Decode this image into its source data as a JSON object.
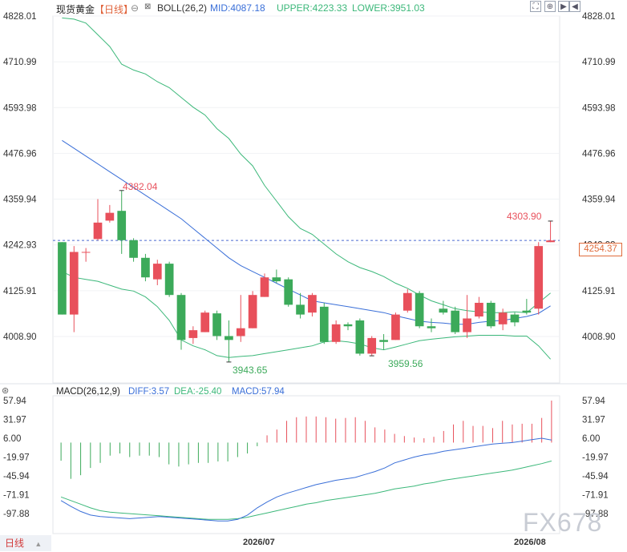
{
  "header": {
    "symbol": "现货黄金",
    "period": "【日线】",
    "indicator": "BOLL(26,2)",
    "mid": "MID:4087.18",
    "upper": "UPPER:4223.33",
    "lower": "LOWER:3951.03"
  },
  "macd_header": {
    "name": "MACD(26,12,9)",
    "diff": "DIFF:3.57",
    "dea": "DEA:-25.40",
    "macd": "MACD:57.94"
  },
  "bottom": {
    "period_button": "日线",
    "date_label_1": "2026/07",
    "date_label_2": "2026/08"
  },
  "current_price": "4254.37",
  "annotations": {
    "high1": "4382.04",
    "low1": "3943.65",
    "low2": "3959.56",
    "high2": "4303.90"
  },
  "watermark": "FX678",
  "colors": {
    "up": "#e8505b",
    "down": "#3caa5a",
    "mid": "#3a6fd8",
    "band": "#3cb87a",
    "price_line": "#4a6ad0",
    "dea": "#3cb87a",
    "diff": "#3a6fd8"
  },
  "chart_data": [
    {
      "type": "candlestick",
      "title": "现货黄金 日线 BOLL(26,2)",
      "y_ticks": [
        "4828.01",
        "4710.99",
        "4593.98",
        "4476.96",
        "4359.94",
        "4242.93",
        "4125.91",
        "4008.90"
      ],
      "ylim": [
        3945,
        4828.01
      ],
      "candles": [
        {
          "o": 4250,
          "h": 4250,
          "c": 4065,
          "l": 4065
        },
        {
          "o": 4065,
          "h": 4240,
          "c": 4225,
          "l": 4020
        },
        {
          "o": 4225,
          "h": 4235,
          "c": 4225,
          "l": 4200
        },
        {
          "o": 4258,
          "h": 4360,
          "c": 4300,
          "l": 4255
        },
        {
          "o": 4305,
          "h": 4345,
          "c": 4325,
          "l": 4300
        },
        {
          "o": 4330,
          "h": 4382.04,
          "c": 4255,
          "l": 4220
        },
        {
          "o": 4255,
          "h": 4260,
          "c": 4210,
          "l": 4200
        },
        {
          "o": 4210,
          "h": 4220,
          "c": 4160,
          "l": 4150
        },
        {
          "o": 4155,
          "h": 4205,
          "c": 4195,
          "l": 4140
        },
        {
          "o": 4195,
          "h": 4200,
          "c": 4115,
          "l": 4110
        },
        {
          "o": 4115,
          "h": 4120,
          "c": 4000,
          "l": 3975
        },
        {
          "o": 4005,
          "h": 4035,
          "c": 4025,
          "l": 3990
        },
        {
          "o": 4020,
          "h": 4075,
          "c": 4070,
          "l": 4020
        },
        {
          "o": 4068,
          "h": 4075,
          "c": 4010,
          "l": 4000
        },
        {
          "o": 4010,
          "h": 4050,
          "c": 4000,
          "l": 3943.65
        },
        {
          "o": 4010,
          "h": 4115,
          "c": 4030,
          "l": 3995
        },
        {
          "o": 4030,
          "h": 4125,
          "c": 4115,
          "l": 4030
        },
        {
          "o": 4110,
          "h": 4170,
          "c": 4160,
          "l": 4110
        },
        {
          "o": 4160,
          "h": 4180,
          "c": 4150,
          "l": 4145
        },
        {
          "o": 4155,
          "h": 4160,
          "c": 4090,
          "l": 4085
        },
        {
          "o": 4090,
          "h": 4120,
          "c": 4065,
          "l": 4055
        },
        {
          "o": 4070,
          "h": 4120,
          "c": 4115,
          "l": 4060
        },
        {
          "o": 4085,
          "h": 4095,
          "c": 3995,
          "l": 3990
        },
        {
          "o": 3995,
          "h": 4050,
          "c": 4040,
          "l": 3990
        },
        {
          "o": 4040,
          "h": 4045,
          "c": 4035,
          "l": 4025
        },
        {
          "o": 4050,
          "h": 4055,
          "c": 3965,
          "l": 3960
        },
        {
          "o": 3965,
          "h": 4010,
          "c": 4005,
          "l": 3959.56
        },
        {
          "o": 4000,
          "h": 4015,
          "c": 3995,
          "l": 3975
        },
        {
          "o": 4000,
          "h": 4070,
          "c": 4065,
          "l": 4000
        },
        {
          "o": 4075,
          "h": 4130,
          "c": 4120,
          "l": 4070
        },
        {
          "o": 4120,
          "h": 4125,
          "c": 4035,
          "l": 4030
        },
        {
          "o": 4035,
          "h": 4055,
          "c": 4030,
          "l": 4020
        },
        {
          "o": 4080,
          "h": 4100,
          "c": 4070,
          "l": 4065
        },
        {
          "o": 4075,
          "h": 4085,
          "c": 4020,
          "l": 4015
        },
        {
          "o": 4020,
          "h": 4115,
          "c": 4055,
          "l": 4005
        },
        {
          "o": 4060,
          "h": 4110,
          "c": 4095,
          "l": 4055
        },
        {
          "o": 4095,
          "h": 4100,
          "c": 4035,
          "l": 4030
        },
        {
          "o": 4040,
          "h": 4080,
          "c": 4070,
          "l": 4025
        },
        {
          "o": 4065,
          "h": 4070,
          "c": 4045,
          "l": 4035
        },
        {
          "o": 4075,
          "h": 4105,
          "c": 4070,
          "l": 4065
        },
        {
          "o": 4080,
          "h": 4250,
          "c": 4240,
          "l": 4065
        },
        {
          "o": 4250,
          "h": 4303.9,
          "c": 4254.37,
          "l": 4250
        }
      ],
      "boll_upper": [
        4823,
        4820,
        4810,
        4780,
        4750,
        4705,
        4690,
        4680,
        4660,
        4645,
        4620,
        4595,
        4575,
        4540,
        4515,
        4475,
        4445,
        4395,
        4355,
        4315,
        4285,
        4270,
        4245,
        4220,
        4200,
        4185,
        4175,
        4162,
        4145,
        4132,
        4115,
        4100,
        4090,
        4080,
        4075,
        4072,
        4070,
        4070,
        4072,
        4070,
        4095,
        4120
      ],
      "boll_mid": [
        4510,
        4490,
        4470,
        4450,
        4430,
        4410,
        4390,
        4370,
        4350,
        4330,
        4310,
        4285,
        4260,
        4235,
        4210,
        4190,
        4175,
        4160,
        4145,
        4130,
        4115,
        4100,
        4095,
        4090,
        4085,
        4080,
        4075,
        4070,
        4062,
        4055,
        4048,
        4045,
        4043,
        4040,
        4040,
        4045,
        4048,
        4050,
        4055,
        4060,
        4068,
        4087.18
      ],
      "boll_lower": [
        4175,
        4160,
        4155,
        4150,
        4140,
        4130,
        4125,
        4110,
        4085,
        4050,
        4000,
        3985,
        3975,
        3960,
        3955,
        3958,
        3960,
        3965,
        3970,
        3975,
        3980,
        3985,
        3995,
        3998,
        3995,
        3990,
        3980,
        3975,
        3982,
        3990,
        3998,
        4002,
        4005,
        4008,
        4010,
        4012,
        4012,
        4012,
        4010,
        4010,
        3985,
        3951.03
      ]
    },
    {
      "type": "bar",
      "title": "MACD(26,12,9)",
      "y_ticks": [
        "57.94",
        "31.97",
        "6.00",
        "-19.97",
        "-45.94",
        "-71.91",
        "-97.88"
      ],
      "ylim": [
        -115,
        70
      ],
      "macd": [
        -25,
        -50,
        -45,
        -35,
        -28,
        -18,
        -15,
        -20,
        -18,
        -18,
        -20,
        -30,
        -33,
        -30,
        -28,
        -28,
        -26,
        -26,
        -20,
        -15,
        -5,
        10,
        18,
        30,
        35,
        36,
        36,
        35,
        33,
        34,
        35,
        30,
        21,
        18,
        12,
        9,
        7,
        6,
        8,
        16,
        25,
        30,
        23,
        23,
        20,
        30,
        25,
        26,
        26,
        34,
        57.94
      ],
      "diff": [
        -80,
        -88,
        -95,
        -100,
        -102,
        -103,
        -104,
        -105,
        -104,
        -103,
        -102,
        -103,
        -104,
        -105,
        -106,
        -107,
        -108,
        -108,
        -106,
        -100,
        -90,
        -82,
        -75,
        -70,
        -66,
        -62,
        -58,
        -55,
        -52,
        -50,
        -48,
        -44,
        -40,
        -35,
        -28,
        -24,
        -20,
        -17,
        -15,
        -12,
        -10,
        -8,
        -6,
        -4,
        -2,
        -1,
        0,
        2,
        4,
        6,
        3.57
      ],
      "dea": [
        -75,
        -80,
        -85,
        -90,
        -94,
        -96,
        -97,
        -98,
        -99,
        -100,
        -101,
        -102,
        -103,
        -104,
        -105,
        -106,
        -106,
        -106,
        -105,
        -103,
        -100,
        -97,
        -94,
        -91,
        -88,
        -85,
        -83,
        -80,
        -78,
        -76,
        -74,
        -72,
        -70,
        -67,
        -64,
        -62,
        -60,
        -57,
        -55,
        -52,
        -50,
        -48,
        -46,
        -44,
        -42,
        -40,
        -38,
        -35,
        -32,
        -29,
        -25.4
      ]
    }
  ]
}
